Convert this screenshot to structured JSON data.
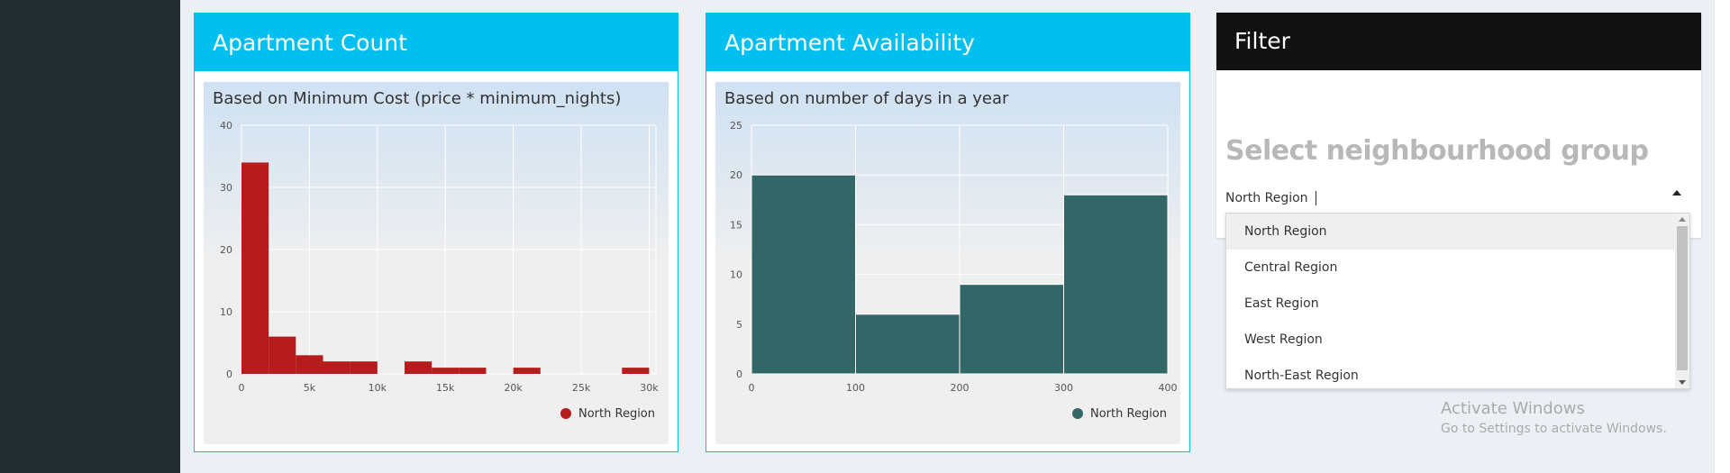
{
  "boxes": [
    {
      "title": "Apartment Count",
      "chart_data": {
        "type": "bar",
        "title": "Based on Minimum Cost (price * minimum_nights)",
        "xlabel": "",
        "ylabel": "",
        "x_ticks": [
          0,
          5000,
          10000,
          15000,
          20000,
          25000,
          30000
        ],
        "x_tick_labels": [
          "0",
          "5k",
          "10k",
          "15k",
          "20k",
          "25k",
          "30k"
        ],
        "y_ticks": [
          0,
          10,
          20,
          30,
          40
        ],
        "xlim": [
          0,
          30500
        ],
        "ylim": [
          0,
          40
        ],
        "bin_width": 2000,
        "bins": [
          0,
          2000,
          4000,
          6000,
          8000,
          12000,
          14000,
          16000,
          20000,
          28000
        ],
        "values": [
          34,
          6,
          3,
          2,
          2,
          2,
          1,
          1,
          1,
          1
        ],
        "series": [
          {
            "name": "North Region",
            "color": "#b71c1c"
          }
        ],
        "legend": "bottom-right",
        "grid": true
      }
    },
    {
      "title": "Apartment Availability",
      "chart_data": {
        "type": "bar",
        "title": "Based on number of days in a year",
        "xlabel": "",
        "ylabel": "",
        "x_ticks": [
          0,
          100,
          200,
          300,
          400
        ],
        "x_tick_labels": [
          "0",
          "100",
          "200",
          "300",
          "400"
        ],
        "y_ticks": [
          0,
          5,
          10,
          15,
          20,
          25
        ],
        "xlim": [
          0,
          400
        ],
        "ylim": [
          0,
          25
        ],
        "bin_width": 100,
        "bins": [
          0,
          100,
          200,
          300
        ],
        "values": [
          20,
          6,
          9,
          18
        ],
        "series": [
          {
            "name": "North Region",
            "color": "#336666"
          }
        ],
        "legend": "bottom-right",
        "grid": true
      }
    }
  ],
  "filter": {
    "title": "Filter",
    "label": "Select neighbourhood group",
    "selected": "North Region",
    "options": [
      "North Region",
      "Central Region",
      "East Region",
      "West Region",
      "North-East Region"
    ]
  },
  "watermark": {
    "title": "Activate Windows",
    "subtitle": "Go to Settings to activate Windows."
  }
}
